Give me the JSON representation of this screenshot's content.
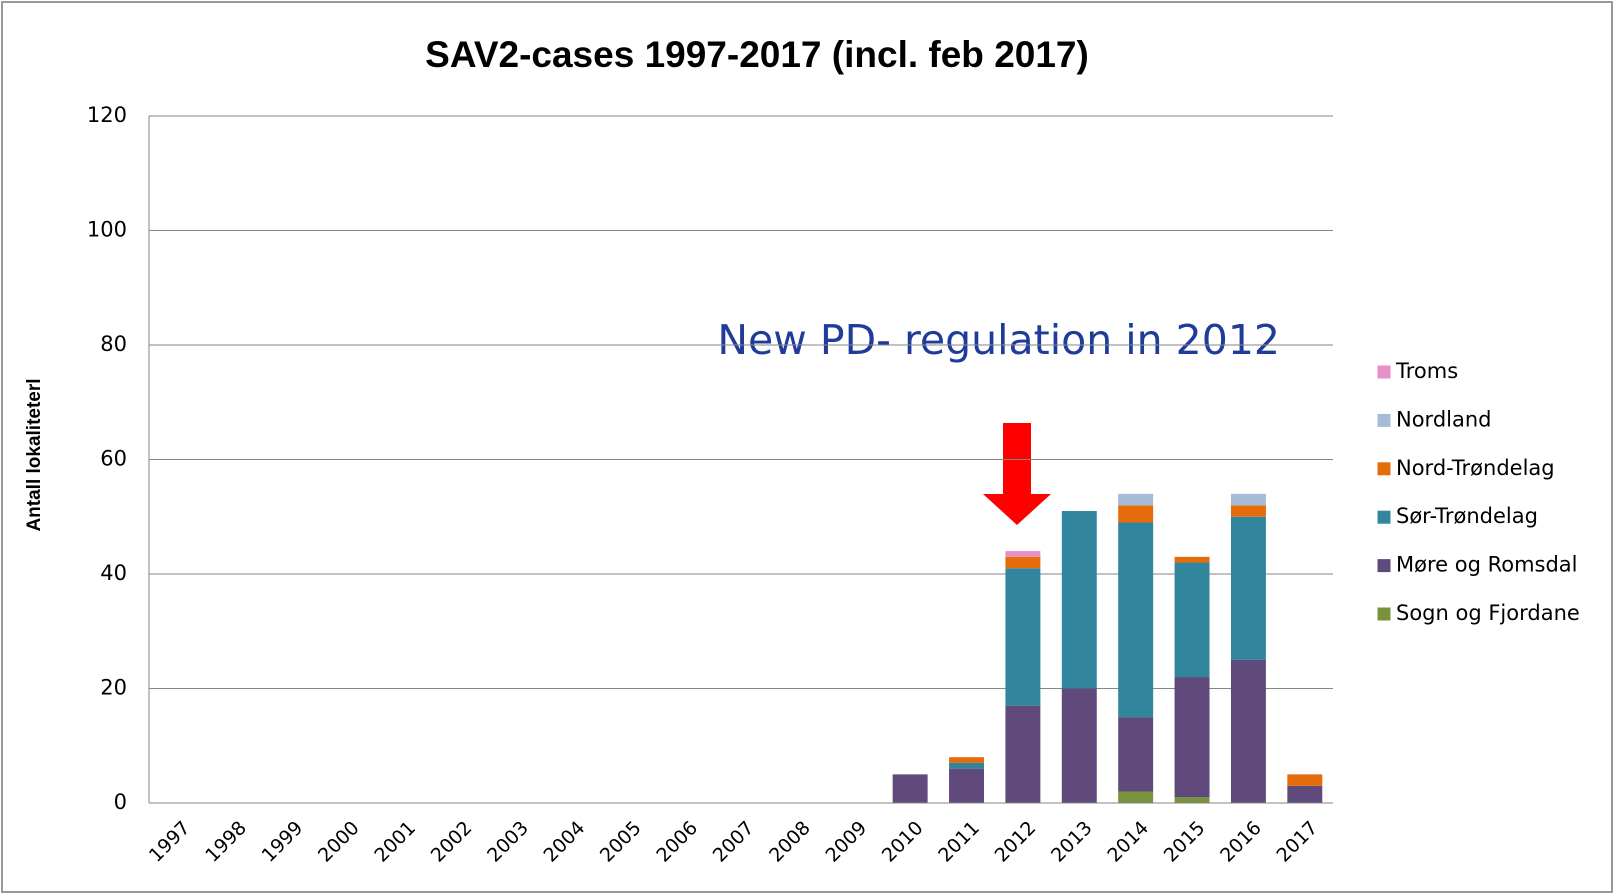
{
  "chart_data": {
    "type": "stacked_bar",
    "title": "SAV2-cases 1997-2017 (incl. feb 2017)",
    "y_label": "Antall lokaliteterl",
    "annotations": [
      "New PD- regulation in 2012"
    ],
    "categories": [
      "1997",
      "1998",
      "1999",
      "2000",
      "2001",
      "2002",
      "2003",
      "2004",
      "2005",
      "2006",
      "2007",
      "2008",
      "2009",
      "2010",
      "2011",
      "2012",
      "2013",
      "2014",
      "2015",
      "2016",
      "2017"
    ],
    "series": [
      {
        "name": "Sogn og Fjordane",
        "color": "#77933c",
        "values": [
          0,
          0,
          0,
          0,
          0,
          0,
          0,
          0,
          0,
          0,
          0,
          0,
          0,
          0,
          0,
          0,
          0,
          2,
          1,
          0,
          0
        ]
      },
      {
        "name": "Møre og Romsdal",
        "color": "#604a7b",
        "values": [
          0,
          0,
          0,
          0,
          0,
          0,
          0,
          0,
          0,
          0,
          0,
          0,
          0,
          5,
          6,
          17,
          20,
          13,
          21,
          25,
          3
        ]
      },
      {
        "name": "Sør-Trøndelag",
        "color": "#31859c",
        "values": [
          0,
          0,
          0,
          0,
          0,
          0,
          0,
          0,
          0,
          0,
          0,
          0,
          0,
          0,
          1,
          24,
          31,
          34,
          20,
          25,
          0
        ]
      },
      {
        "name": "Nord-Trøndelag",
        "color": "#e46c0a",
        "values": [
          0,
          0,
          0,
          0,
          0,
          0,
          0,
          0,
          0,
          0,
          0,
          0,
          0,
          0,
          1,
          2,
          0,
          3,
          1,
          2,
          2
        ]
      },
      {
        "name": "Nordland",
        "color": "#a5bcd9",
        "values": [
          0,
          0,
          0,
          0,
          0,
          0,
          0,
          0,
          0,
          0,
          0,
          0,
          0,
          0,
          0,
          0,
          0,
          2,
          0,
          2,
          0
        ]
      },
      {
        "name": "Troms",
        "color": "#e88fc8",
        "values": [
          0,
          0,
          0,
          0,
          0,
          0,
          0,
          0,
          0,
          0,
          0,
          0,
          0,
          0,
          0,
          1,
          0,
          0,
          0,
          0,
          0
        ]
      }
    ],
    "ylim": [
      0,
      120
    ],
    "yticks": [
      0,
      20,
      40,
      60,
      80,
      100,
      120
    ],
    "grid": true,
    "legend": "right"
  }
}
